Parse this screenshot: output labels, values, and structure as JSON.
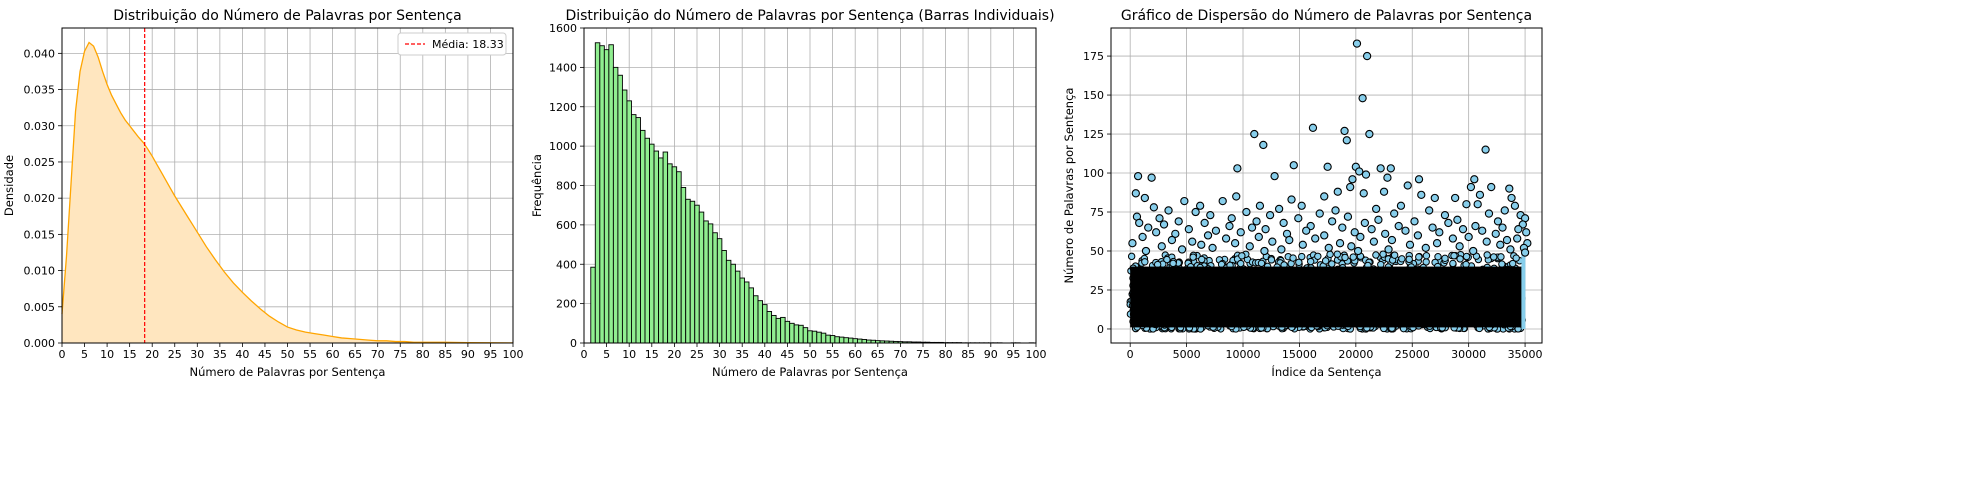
{
  "chart_data": [
    {
      "type": "area",
      "title": "Distribuição do Número de Palavras por Sentença",
      "xlabel": "Número de Palavras por Sentença",
      "ylabel": "Densidade",
      "xlim": [
        0,
        100
      ],
      "ylim": [
        0,
        0.0435
      ],
      "xticks": [
        0,
        5,
        10,
        15,
        20,
        25,
        30,
        35,
        40,
        45,
        50,
        55,
        60,
        65,
        70,
        75,
        80,
        85,
        90,
        95,
        100
      ],
      "yticks": [
        0.0,
        0.005,
        0.01,
        0.015,
        0.02,
        0.025,
        0.03,
        0.035,
        0.04
      ],
      "ytick_labels": [
        "0.000",
        "0.005",
        "0.010",
        "0.015",
        "0.020",
        "0.025",
        "0.030",
        "0.035",
        "0.040"
      ],
      "grid": true,
      "line_color": "#ffa500",
      "fill_color": "#ffe6bf",
      "x": [
        0,
        1,
        2,
        3,
        4,
        5,
        6,
        7,
        8,
        9,
        10,
        11,
        12,
        13,
        14,
        15,
        16,
        17,
        18,
        19,
        20,
        21,
        22,
        23,
        24,
        25,
        26,
        27,
        28,
        29,
        30,
        32,
        34,
        36,
        38,
        40,
        42,
        44,
        46,
        48,
        50,
        52,
        54,
        56,
        58,
        60,
        62,
        64,
        66,
        68,
        70,
        72,
        74,
        76,
        78,
        80,
        85,
        90,
        95,
        100
      ],
      "values": [
        0.004,
        0.012,
        0.022,
        0.032,
        0.0375,
        0.0403,
        0.0415,
        0.041,
        0.0395,
        0.0375,
        0.0357,
        0.0342,
        0.033,
        0.0318,
        0.0308,
        0.03,
        0.0292,
        0.0284,
        0.0277,
        0.0268,
        0.0258,
        0.0247,
        0.0236,
        0.0225,
        0.0214,
        0.0203,
        0.0193,
        0.0183,
        0.0173,
        0.0163,
        0.0153,
        0.0133,
        0.0115,
        0.0098,
        0.0083,
        0.007,
        0.0058,
        0.0047,
        0.0037,
        0.0029,
        0.0022,
        0.0018,
        0.0015,
        0.0013,
        0.0011,
        0.0009,
        0.0007,
        0.0006,
        0.0005,
        0.0004,
        0.0003,
        0.0003,
        0.0002,
        0.0002,
        0.0001,
        0.0001,
        0.0001,
        5e-05,
        3e-05,
        2e-05
      ],
      "mean_line": {
        "x": 18.33,
        "color": "#ff0000",
        "label": "Média: 18.33"
      },
      "legend_position": "upper right"
    },
    {
      "type": "bar",
      "title": "Distribuição do Número de Palavras por Sentença (Barras Individuais)",
      "xlabel": "Número de Palavras por Sentença",
      "ylabel": "Frequência",
      "xlim": [
        0,
        100
      ],
      "ylim": [
        0,
        1600
      ],
      "xticks": [
        0,
        5,
        10,
        15,
        20,
        25,
        30,
        35,
        40,
        45,
        50,
        55,
        60,
        65,
        70,
        75,
        80,
        85,
        90,
        95,
        100
      ],
      "yticks": [
        0,
        200,
        400,
        600,
        800,
        1000,
        1200,
        1400,
        1600
      ],
      "grid": true,
      "bar_color": "#90ee90",
      "edge_color": "#000000",
      "categories": [
        1,
        2,
        3,
        4,
        5,
        6,
        7,
        8,
        9,
        10,
        11,
        12,
        13,
        14,
        15,
        16,
        17,
        18,
        19,
        20,
        21,
        22,
        23,
        24,
        25,
        26,
        27,
        28,
        29,
        30,
        31,
        32,
        33,
        34,
        35,
        36,
        37,
        38,
        39,
        40,
        41,
        42,
        43,
        44,
        45,
        46,
        47,
        48,
        49,
        50,
        51,
        52,
        53,
        54,
        55,
        56,
        57,
        58,
        59,
        60,
        61,
        62,
        63,
        64,
        65,
        66,
        67,
        68,
        69,
        70,
        71,
        72,
        73,
        74,
        75,
        76,
        77,
        78,
        79,
        80,
        81,
        82,
        83,
        84,
        85,
        86,
        87,
        88,
        89,
        90,
        91,
        92,
        93,
        94,
        95,
        96,
        97,
        98,
        99
      ],
      "values": [
        0,
        385,
        1525,
        1510,
        1490,
        1515,
        1400,
        1360,
        1285,
        1230,
        1160,
        1145,
        1080,
        1040,
        1010,
        975,
        940,
        970,
        910,
        895,
        870,
        790,
        730,
        720,
        700,
        665,
        620,
        605,
        560,
        530,
        470,
        420,
        400,
        365,
        330,
        310,
        280,
        240,
        215,
        195,
        160,
        140,
        125,
        130,
        110,
        100,
        92,
        90,
        78,
        62,
        60,
        55,
        50,
        40,
        38,
        32,
        30,
        27,
        25,
        22,
        20,
        18,
        15,
        14,
        12,
        11,
        10,
        9,
        8,
        7,
        6,
        6,
        5,
        5,
        4,
        4,
        3,
        3,
        3,
        2,
        2,
        2,
        2,
        1,
        1,
        1,
        1,
        1,
        1,
        1,
        1,
        1,
        0,
        0,
        1,
        1,
        0,
        0,
        1
      ]
    },
    {
      "type": "scatter",
      "title": "Gráfico de Dispersão do Número de Palavras por Sentença",
      "xlabel": "Índice da Sentença",
      "ylabel": "Número de Palavras por Sentença",
      "xlim": [
        -1700,
        36500
      ],
      "ylim": [
        -9,
        193
      ],
      "xticks": [
        0,
        5000,
        10000,
        15000,
        20000,
        25000,
        30000,
        35000
      ],
      "yticks": [
        0,
        25,
        50,
        75,
        100,
        125,
        150,
        175
      ],
      "grid": true,
      "marker_color": "#87ceeb",
      "edge_color": "#000000",
      "dense_band": {
        "from": 0,
        "to": 48
      },
      "points": [
        [
          20100,
          183
        ],
        [
          21000,
          175
        ],
        [
          20600,
          148
        ],
        [
          16200,
          129
        ],
        [
          11000,
          125
        ],
        [
          19000,
          127
        ],
        [
          21200,
          125
        ],
        [
          19200,
          121
        ],
        [
          11800,
          118
        ],
        [
          31500,
          115
        ],
        [
          14500,
          105
        ],
        [
          9500,
          103
        ],
        [
          20000,
          104
        ],
        [
          22200,
          103
        ],
        [
          23100,
          103
        ],
        [
          17500,
          104
        ],
        [
          12800,
          98
        ],
        [
          20300,
          101
        ],
        [
          20900,
          99
        ],
        [
          19700,
          96
        ],
        [
          700,
          98
        ],
        [
          1900,
          97
        ],
        [
          30500,
          96
        ],
        [
          22800,
          97
        ],
        [
          25600,
          96
        ],
        [
          19500,
          91
        ],
        [
          24600,
          92
        ],
        [
          33600,
          90
        ],
        [
          30200,
          91
        ],
        [
          18400,
          88
        ],
        [
          500,
          87
        ],
        [
          20700,
          87
        ],
        [
          22500,
          88
        ],
        [
          32000,
          91
        ],
        [
          31000,
          86
        ],
        [
          17200,
          85
        ],
        [
          28800,
          84
        ],
        [
          14300,
          83
        ],
        [
          1300,
          84
        ],
        [
          9400,
          85
        ],
        [
          25800,
          86
        ],
        [
          27000,
          84
        ],
        [
          33800,
          84
        ],
        [
          8200,
          82
        ],
        [
          4800,
          82
        ],
        [
          30800,
          80
        ],
        [
          6200,
          79
        ],
        [
          15200,
          79
        ],
        [
          24000,
          79
        ],
        [
          11500,
          79
        ],
        [
          29800,
          80
        ],
        [
          34100,
          79
        ],
        [
          2100,
          78
        ],
        [
          13200,
          77
        ],
        [
          21800,
          77
        ],
        [
          3400,
          76
        ],
        [
          18200,
          76
        ],
        [
          26500,
          76
        ],
        [
          33200,
          76
        ],
        [
          5800,
          75
        ],
        [
          10300,
          75
        ],
        [
          16800,
          74
        ],
        [
          23400,
          74
        ],
        [
          31800,
          74
        ],
        [
          7100,
          73
        ],
        [
          12400,
          73
        ],
        [
          27900,
          73
        ],
        [
          34600,
          73
        ],
        [
          600,
          72
        ],
        [
          19300,
          72
        ],
        [
          35000,
          71
        ],
        [
          2600,
          71
        ],
        [
          9000,
          71
        ],
        [
          14900,
          71
        ],
        [
          22000,
          70
        ],
        [
          29000,
          70
        ],
        [
          4300,
          69
        ],
        [
          11200,
          69
        ],
        [
          17900,
          69
        ],
        [
          25200,
          69
        ],
        [
          32600,
          69
        ],
        [
          800,
          68
        ],
        [
          6600,
          68
        ],
        [
          13600,
          68
        ],
        [
          20800,
          68
        ],
        [
          28200,
          68
        ],
        [
          34800,
          67
        ],
        [
          3000,
          67
        ],
        [
          8800,
          66
        ],
        [
          16000,
          66
        ],
        [
          23800,
          66
        ],
        [
          30600,
          66
        ],
        [
          1600,
          65
        ],
        [
          10800,
          65
        ],
        [
          18800,
          65
        ],
        [
          26800,
          65
        ],
        [
          33000,
          65
        ],
        [
          5200,
          64
        ],
        [
          12000,
          64
        ],
        [
          21400,
          64
        ],
        [
          29500,
          64
        ],
        [
          34400,
          64
        ],
        [
          7600,
          63
        ],
        [
          15600,
          63
        ],
        [
          24400,
          63
        ],
        [
          31200,
          63
        ],
        [
          2300,
          62
        ],
        [
          9800,
          62
        ],
        [
          19900,
          62
        ],
        [
          27400,
          62
        ],
        [
          4000,
          61
        ],
        [
          13900,
          61
        ],
        [
          22600,
          61
        ],
        [
          32400,
          61
        ],
        [
          35100,
          62
        ],
        [
          6900,
          60
        ],
        [
          17200,
          60
        ],
        [
          25500,
          60
        ],
        [
          1100,
          59
        ],
        [
          11400,
          59
        ],
        [
          20400,
          59
        ],
        [
          30000,
          59
        ],
        [
          8500,
          58
        ],
        [
          16400,
          58
        ],
        [
          28600,
          58
        ],
        [
          34300,
          58
        ],
        [
          3700,
          57
        ],
        [
          14100,
          57
        ],
        [
          23200,
          57
        ],
        [
          33400,
          57
        ],
        [
          5500,
          56
        ],
        [
          12600,
          56
        ],
        [
          21600,
          56
        ],
        [
          31600,
          56
        ],
        [
          200,
          55
        ],
        [
          9300,
          55
        ],
        [
          18600,
          55
        ],
        [
          27200,
          55
        ],
        [
          35200,
          55
        ],
        [
          6300,
          54
        ],
        [
          15300,
          54
        ],
        [
          24800,
          54
        ],
        [
          32800,
          54
        ],
        [
          2800,
          53
        ],
        [
          10600,
          53
        ],
        [
          19600,
          53
        ],
        [
          29200,
          53
        ],
        [
          7300,
          52
        ],
        [
          17600,
          52
        ],
        [
          26200,
          52
        ],
        [
          34900,
          52
        ],
        [
          4600,
          51
        ],
        [
          13400,
          51
        ],
        [
          22900,
          51
        ],
        [
          33700,
          51
        ],
        [
          1400,
          50
        ],
        [
          11900,
          50
        ],
        [
          20200,
          50
        ],
        [
          30400,
          50
        ],
        [
          35000,
          49
        ]
      ]
    }
  ]
}
